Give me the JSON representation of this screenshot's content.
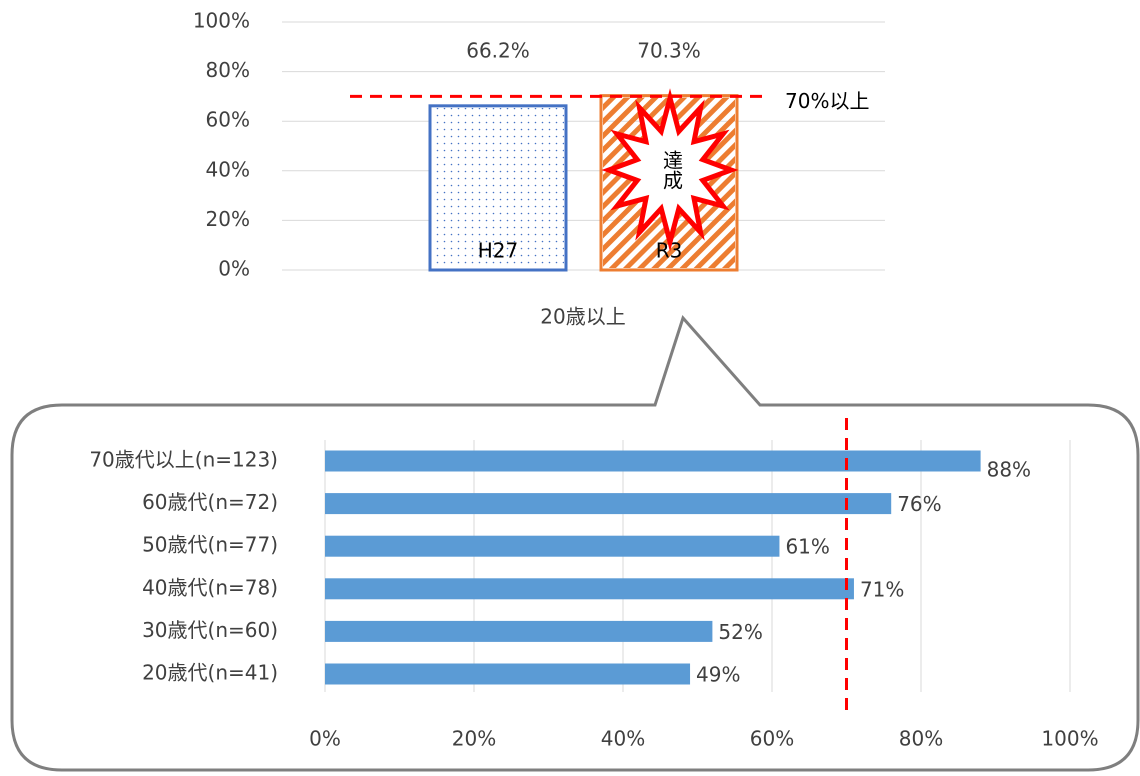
{
  "chart_data": [
    {
      "type": "bar",
      "categories": [
        "20歳以上"
      ],
      "series": [
        {
          "name": "H27",
          "color": "#4472c4",
          "values": [
            66.2
          ],
          "value_labels": [
            "66.2%"
          ]
        },
        {
          "name": "R3",
          "color": "#ed7d31",
          "values": [
            70.3
          ],
          "value_labels": [
            "70.3%"
          ]
        }
      ],
      "ylim": [
        0,
        100
      ],
      "yticks": [
        {
          "value": 0,
          "label": "0%"
        },
        {
          "value": 20,
          "label": "20%"
        },
        {
          "value": 40,
          "label": "40%"
        },
        {
          "value": 60,
          "label": "60%"
        },
        {
          "value": 80,
          "label": "80%"
        },
        {
          "value": 100,
          "label": "100%"
        }
      ],
      "grid": true,
      "target": {
        "value": 70,
        "label": "70%以上",
        "color": "#ff0000"
      },
      "annotation": "達成"
    },
    {
      "type": "barh",
      "categories": [
        "70歳代以上(n=123)",
        "60歳代(n=72)",
        "50歳代(n=77)",
        "40歳代(n=78)",
        "30歳代(n=60)",
        "20歳代(n=41)"
      ],
      "values": [
        88,
        76,
        61,
        71,
        52,
        49
      ],
      "value_labels": [
        "88%",
        "76%",
        "61%",
        "71%",
        "52%",
        "49%"
      ],
      "color": "#5b9bd5",
      "xlim": [
        0,
        100
      ],
      "xticks": [
        {
          "value": 0,
          "label": "0%"
        },
        {
          "value": 20,
          "label": "20%"
        },
        {
          "value": 40,
          "label": "40%"
        },
        {
          "value": 60,
          "label": "60%"
        },
        {
          "value": 80,
          "label": "80%"
        },
        {
          "value": 100,
          "label": "100%"
        }
      ],
      "grid": true,
      "reference_line": {
        "value": 70,
        "color": "#ff0000"
      }
    }
  ]
}
